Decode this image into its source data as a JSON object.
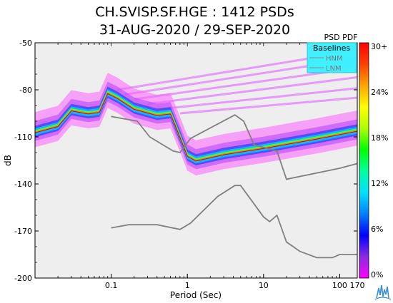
{
  "chart_data": {
    "type": "heatmap",
    "title_line_1": "CH.SVISP.SF.HGE : 1412 PSDs",
    "title_line_2": "31-AUG-2020 / 29-SEP-2020",
    "xlabel": "Period (Sec)",
    "ylabel": "dB",
    "x_scale": "log",
    "xlim": [
      0.01,
      170
    ],
    "ylim": [
      -200,
      -50
    ],
    "x_ticks": [
      {
        "value": 0.1,
        "label": "0.1"
      },
      {
        "value": 1,
        "label": "1"
      },
      {
        "value": 10,
        "label": "10"
      },
      {
        "value": 100,
        "label": "100"
      },
      {
        "value": 170,
        "label": "170"
      }
    ],
    "y_ticks": [
      {
        "value": -50,
        "label": "-50"
      },
      {
        "value": -80,
        "label": "-80"
      },
      {
        "value": -110,
        "label": "-110"
      },
      {
        "value": -140,
        "label": "-140"
      },
      {
        "value": -170,
        "label": "-170"
      },
      {
        "value": -200,
        "label": "-200"
      }
    ],
    "colorbar": {
      "title": "PSD PDF",
      "range": [
        0,
        30
      ],
      "ticks": [
        "30+",
        "24%",
        "18%",
        "12%",
        "6%",
        "0%"
      ],
      "colors": [
        "#ff00ff",
        "#8a2be2",
        "#0000ff",
        "#0080ff",
        "#00e0ff",
        "#00ffa0",
        "#00ff00",
        "#b0ff00",
        "#ffff00",
        "#ffa500",
        "#ff4000",
        "#ff0000"
      ]
    },
    "legend": {
      "title": "Baselines",
      "placement": "top-right",
      "entries": [
        "HNM",
        "LNM"
      ]
    },
    "baselines": {
      "HNM": [
        [
          0.1,
          -97
        ],
        [
          0.22,
          -100
        ],
        [
          0.32,
          -110
        ],
        [
          0.65,
          -119
        ],
        [
          0.8,
          -120
        ],
        [
          1.1,
          -111
        ],
        [
          4.2,
          -96
        ],
        [
          5.5,
          -100
        ],
        [
          7.5,
          -115
        ],
        [
          15,
          -119
        ],
        [
          20,
          -137
        ],
        [
          100,
          -130
        ],
        [
          170,
          -127
        ]
      ],
      "LNM": [
        [
          0.1,
          -168
        ],
        [
          0.17,
          -166
        ],
        [
          0.4,
          -166
        ],
        [
          0.8,
          -169
        ],
        [
          1.1,
          -165
        ],
        [
          2.5,
          -148
        ],
        [
          4.2,
          -141
        ],
        [
          5,
          -141
        ],
        [
          10,
          -161
        ],
        [
          12,
          -164
        ],
        [
          15,
          -160
        ],
        [
          20,
          -177
        ],
        [
          30,
          -183
        ],
        [
          50,
          -187
        ],
        [
          80,
          -187
        ],
        [
          100,
          -185
        ],
        [
          170,
          -185
        ]
      ]
    },
    "pdf_mode_curve": [
      [
        0.01,
        -107
      ],
      [
        0.02,
        -103
      ],
      [
        0.03,
        -93
      ],
      [
        0.05,
        -95
      ],
      [
        0.07,
        -94
      ],
      [
        0.09,
        -82
      ],
      [
        0.12,
        -85
      ],
      [
        0.2,
        -92
      ],
      [
        0.4,
        -96
      ],
      [
        0.6,
        -95
      ],
      [
        0.8,
        -110
      ],
      [
        1.0,
        -122
      ],
      [
        1.3,
        -125
      ],
      [
        3,
        -121
      ],
      [
        10,
        -117
      ],
      [
        50,
        -111
      ],
      [
        170,
        -106
      ]
    ],
    "pdf_spread_db": 8,
    "streaks": [
      [
        [
          0.12,
          -80
        ],
        [
          170,
          -55
        ]
      ],
      [
        [
          0.15,
          -83
        ],
        [
          170,
          -60
        ]
      ],
      [
        [
          0.2,
          -86
        ],
        [
          170,
          -66
        ]
      ],
      [
        [
          0.3,
          -89
        ],
        [
          170,
          -72
        ]
      ],
      [
        [
          0.5,
          -92
        ],
        [
          170,
          -79
        ]
      ],
      [
        [
          0.8,
          -95
        ],
        [
          170,
          -85
        ]
      ]
    ]
  },
  "watermark": {
    "icon": "iris-logo-icon"
  }
}
